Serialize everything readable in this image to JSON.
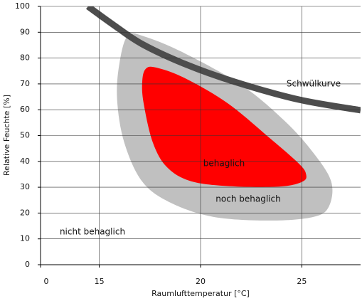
{
  "chart_data": {
    "type": "area",
    "xlabel": "Raumlufttemperatur [°C]",
    "ylabel": "Relative Feuchte [%]",
    "xlim": [
      12.1,
      27.9
    ],
    "xticks": [
      {
        "value": 12.1,
        "label": "0"
      },
      15,
      20,
      25
    ],
    "ylim": [
      0,
      100
    ],
    "yticks": [
      0,
      10,
      20,
      30,
      40,
      50,
      60,
      70,
      80,
      90,
      100
    ],
    "grid": true,
    "annotations": [
      "nicht behaglich"
    ],
    "series": [
      {
        "name": "noch behaglich",
        "color": "#c0c0c0",
        "fill": true,
        "x": [
          16.41,
          17.29,
          19.23,
          22.05,
          24.16,
          25.57,
          26.45,
          26.34,
          25.57,
          23.45,
          20.64,
          18.52,
          17.12,
          16.23,
          15.88,
          15.99
        ],
        "values": [
          88.7,
          88.2,
          81.8,
          69.4,
          55.6,
          43.3,
          32.2,
          22.6,
          18.5,
          17.1,
          18.5,
          24.0,
          32.2,
          47.4,
          63.9,
          77.7
        ]
      },
      {
        "name": "behaglich",
        "color": "#ff0000",
        "fill": true,
        "x": [
          17.29,
          17.82,
          19.23,
          21.34,
          23.45,
          24.86,
          25.21,
          25.04,
          23.98,
          21.69,
          19.58,
          18.35,
          17.64,
          17.19,
          17.12
        ],
        "values": [
          75.8,
          76.3,
          72.2,
          62.5,
          48.8,
          39.1,
          35.0,
          32.2,
          30.3,
          30.3,
          32.2,
          37.7,
          47.4,
          62.5,
          70.8
        ]
      },
      {
        "name": "Schwülkurve",
        "color": "#4d4d4d",
        "fill": false,
        "x": [
          14.44,
          15.71,
          17.12,
          19.23,
          21.69,
          24.86,
          27.9
        ],
        "values": [
          100,
          92.8,
          85.4,
          77.7,
          70.8,
          63.9,
          59.8
        ]
      }
    ]
  }
}
